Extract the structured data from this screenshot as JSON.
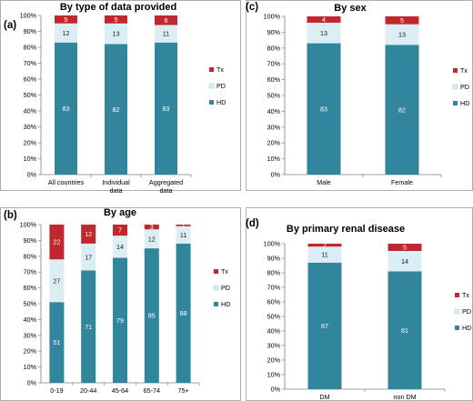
{
  "colors": {
    "HD": "#31859c",
    "PD": "#dbeef3",
    "Tx": "#c0282d",
    "frame": "#9a9a9a",
    "axis": "#808080"
  },
  "legend_order": [
    "Tx",
    "PD",
    "HD"
  ],
  "chart_data": [
    {
      "letter": "(a)",
      "type": "bar",
      "stacked": true,
      "title": "By type of data provided",
      "categories": [
        [
          "All countries"
        ],
        [
          "Individual",
          "data"
        ],
        [
          "Aggregated",
          "data"
        ]
      ],
      "ylim": [
        0,
        100
      ],
      "yticks": [
        "0%",
        "10%",
        "20%",
        "30%",
        "40%",
        "50%",
        "60%",
        "70%",
        "80%",
        "90%",
        "100%"
      ],
      "series": [
        {
          "name": "HD",
          "values": [
            83,
            82,
            83
          ]
        },
        {
          "name": "PD",
          "values": [
            12,
            13,
            11
          ]
        },
        {
          "name": "Tx",
          "values": [
            5,
            5,
            6
          ]
        }
      ]
    },
    {
      "letter": "(c)",
      "type": "bar",
      "stacked": true,
      "title": "By sex",
      "categories": [
        [
          "Male"
        ],
        [
          "Female"
        ]
      ],
      "ylim": [
        0,
        100
      ],
      "yticks": [
        "0%",
        "10%",
        "20%",
        "30%",
        "40%",
        "50%",
        "60%",
        "70%",
        "80%",
        "90%",
        "100%"
      ],
      "series": [
        {
          "name": "HD",
          "values": [
            83,
            82
          ]
        },
        {
          "name": "PD",
          "values": [
            13,
            13
          ]
        },
        {
          "name": "Tx",
          "values": [
            4,
            5
          ]
        }
      ]
    },
    {
      "letter": "(b)",
      "type": "bar",
      "stacked": true,
      "title": "By age",
      "categories": [
        [
          "0-19"
        ],
        [
          "20-44"
        ],
        [
          "45-64"
        ],
        [
          "65-74"
        ],
        [
          "75+"
        ]
      ],
      "ylim": [
        0,
        100
      ],
      "yticks": [
        "0%",
        "10%",
        "20%",
        "30%",
        "40%",
        "50%",
        "60%",
        "70%",
        "80%",
        "90%",
        "100%"
      ],
      "series": [
        {
          "name": "HD",
          "values": [
            51,
            71,
            79,
            85,
            88
          ]
        },
        {
          "name": "PD",
          "values": [
            27,
            17,
            14,
            12,
            11
          ]
        },
        {
          "name": "Tx",
          "values": [
            22,
            12,
            7,
            3,
            1
          ]
        }
      ]
    },
    {
      "letter": "(d)",
      "type": "bar",
      "stacked": true,
      "title": "By primary renal disease",
      "categories": [
        [
          "DM"
        ],
        [
          "non DM"
        ]
      ],
      "ylim": [
        0,
        100
      ],
      "yticks": [
        "0%",
        "10%",
        "20%",
        "30%",
        "40%",
        "50%",
        "60%",
        "70%",
        "80%",
        "90%",
        "100%"
      ],
      "series": [
        {
          "name": "HD",
          "values": [
            87,
            81
          ]
        },
        {
          "name": "PD",
          "values": [
            11,
            14
          ]
        },
        {
          "name": "Tx",
          "values": [
            2,
            5
          ]
        }
      ]
    }
  ]
}
